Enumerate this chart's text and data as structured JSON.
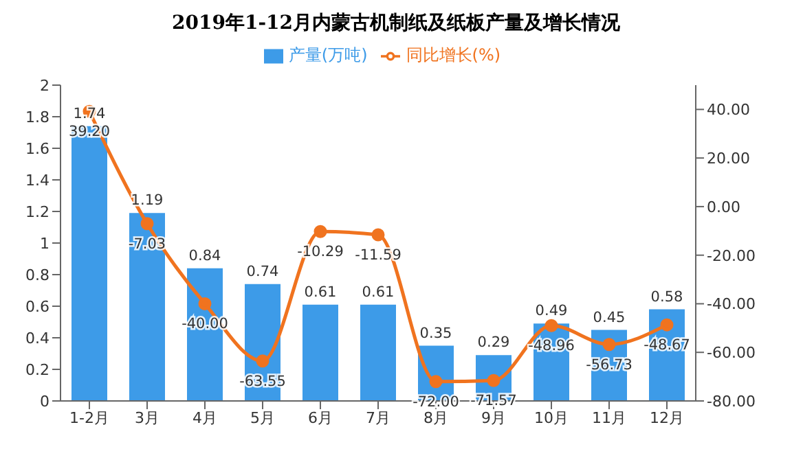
{
  "chart_data": {
    "type": "bar",
    "title": "2019年1-12月内蒙古机制纸及纸板产量及增长情况",
    "categories": [
      "1-2月",
      "3月",
      "4月",
      "5月",
      "6月",
      "7月",
      "8月",
      "9月",
      "10月",
      "11月",
      "12月"
    ],
    "series": [
      {
        "name": "产量(万吨)",
        "color": "#3d9be8",
        "values": [
          1.74,
          1.19,
          0.84,
          0.74,
          0.61,
          0.61,
          0.35,
          0.29,
          0.49,
          0.45,
          0.58
        ],
        "value_labels": [
          "1.74",
          "1.19",
          "0.84",
          "0.74",
          "0.61",
          "0.61",
          "0.35",
          "0.29",
          "0.49",
          "0.45",
          "0.58"
        ]
      },
      {
        "name": "同比增长(%)",
        "type": "line",
        "axis": "y2",
        "color": "#f0731f",
        "values": [
          39.2,
          -7.03,
          -40,
          -63.55,
          -10.29,
          -11.59,
          -72,
          -71.57,
          -48.96,
          -56.73,
          -48.67
        ],
        "value_labels": [
          "39.20",
          "-7.03",
          "-40.00",
          "-63.55",
          "-10.29",
          "-11.59",
          "-72.00",
          "-71.57",
          "-48.96",
          "-56.73",
          "-48.67"
        ]
      }
    ],
    "ylim": [
      0,
      2
    ],
    "yticks": [
      0,
      0.2,
      0.4,
      0.6,
      0.8,
      1,
      1.2,
      1.4,
      1.6,
      1.8,
      2
    ],
    "y2lim": [
      -80,
      50
    ],
    "y2ticks": [
      {
        "value": -80,
        "label": "-80.00"
      },
      {
        "value": -60,
        "label": "-60.00"
      },
      {
        "value": -40,
        "label": "-40.00"
      },
      {
        "value": -20,
        "label": "-20.00"
      },
      {
        "value": 0,
        "label": "0.00"
      },
      {
        "value": 20,
        "label": "20.00"
      },
      {
        "value": 40,
        "label": "40.00"
      }
    ],
    "legend": "top",
    "marker": "circle",
    "grid": false
  }
}
